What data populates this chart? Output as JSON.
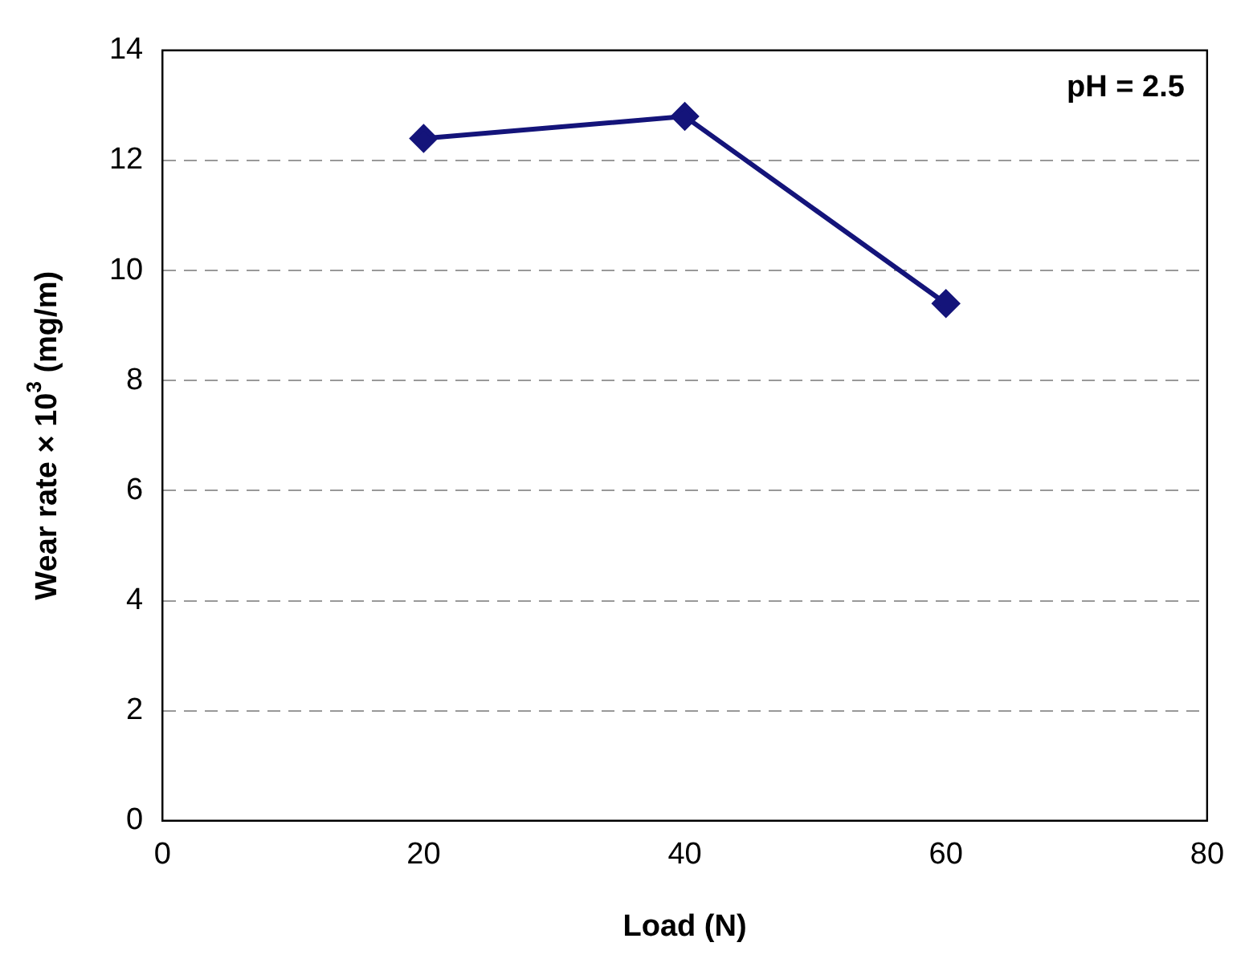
{
  "chart_data": {
    "type": "line",
    "xlabel": "Load (N)",
    "ylabel": "Wear rate × 10$^{3}$ (mg/m)",
    "x": [
      20,
      40,
      60
    ],
    "series": [
      {
        "color": "#14147a",
        "values": [
          12.4,
          12.8,
          9.4
        ]
      }
    ],
    "xlim": [
      0,
      80
    ],
    "xticks": [
      0,
      20,
      40,
      60,
      80
    ],
    "ylim": [
      0,
      14
    ],
    "yticks": [
      0,
      2,
      4,
      6,
      8,
      10,
      12,
      14
    ],
    "grid": "y",
    "marker": "diamond",
    "line_style": "solid",
    "legend": false,
    "annotations": [
      "pH = 2.5"
    ]
  }
}
